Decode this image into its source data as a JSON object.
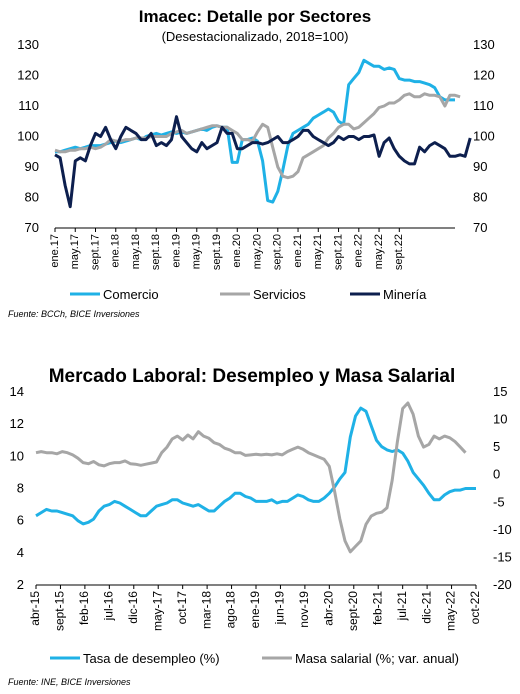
{
  "chart_data": [
    {
      "type": "line",
      "title": "Imacec: Detalle por Sectores",
      "subtitle": "(Desestacionalizado, 2018=100)",
      "source": "Fuente: BCCh, BICE Inversiones",
      "ylim": [
        70,
        130
      ],
      "yticks": [
        70,
        80,
        90,
        100,
        110,
        120,
        130
      ],
      "y2ticks": [
        70,
        80,
        90,
        100,
        110,
        120,
        130
      ],
      "xticks": [
        "ene.17",
        "may.17",
        "sept.17",
        "ene.18",
        "may.18",
        "sept.18",
        "ene.19",
        "may.19",
        "sept.19",
        "ene.20",
        "may.20",
        "sept.20",
        "ene.21",
        "may.21",
        "sept.21",
        "ene.22",
        "may.22",
        "sept.22"
      ],
      "grid": false,
      "legend_position": "bottom",
      "series": [
        {
          "name": "Comercio",
          "color": "#1fb1e6",
          "values": [
            95,
            95,
            95.5,
            96,
            96.5,
            96,
            96.5,
            97,
            97,
            97,
            97.5,
            98,
            98.5,
            98,
            98.5,
            99,
            99.5,
            99,
            100,
            100.5,
            101,
            100.5,
            101,
            101.5,
            101,
            101.5,
            101,
            101.5,
            102,
            102.5,
            102,
            103,
            103.5,
            103,
            103,
            91.5,
            91.5,
            99,
            99,
            99.5,
            98.5,
            92,
            79,
            78.5,
            82,
            89,
            97,
            101,
            102,
            103,
            104,
            106,
            107,
            108,
            109,
            108,
            105,
            104,
            117,
            119,
            121,
            125,
            124,
            123,
            123,
            122,
            122.5,
            122,
            119,
            118.5,
            118.5,
            118,
            118,
            117.5,
            117,
            116,
            113,
            112,
            112,
            112
          ]
        },
        {
          "name": "Servicios",
          "color": "#a6a6a6",
          "values": [
            95.5,
            95,
            95,
            95.5,
            95.5,
            96,
            96,
            96.5,
            96,
            96.5,
            97.5,
            99,
            98.5,
            98.5,
            99,
            99,
            99.5,
            99.5,
            99.5,
            100,
            100,
            100,
            100,
            101,
            101.5,
            102,
            101,
            101.5,
            102,
            102.5,
            103,
            103.5,
            103.5,
            103,
            103,
            102,
            101,
            99,
            99,
            98.5,
            101.5,
            104,
            103,
            96.5,
            90,
            87,
            86.5,
            87,
            88.5,
            93,
            94,
            95,
            96,
            97,
            99.5,
            101,
            103,
            104,
            104,
            102.5,
            103,
            104.5,
            106,
            107.5,
            109.5,
            110,
            111,
            111,
            112,
            113.5,
            114,
            113,
            113,
            114,
            113.5,
            113.5,
            113,
            110,
            113.5,
            113.5,
            113
          ]
        },
        {
          "name": "Minería",
          "color": "#0d1f4e",
          "values": [
            94,
            93,
            84,
            77,
            92,
            93,
            92,
            97,
            101,
            100,
            103,
            99,
            96,
            100,
            103,
            102,
            101,
            99,
            99,
            101,
            97,
            98,
            97,
            99,
            106.5,
            100,
            98,
            96,
            95,
            98,
            96,
            97,
            98,
            103,
            101,
            101,
            96,
            96,
            97,
            98,
            98,
            97.5,
            98,
            99,
            100,
            98,
            98,
            99,
            100,
            102,
            102,
            100,
            99,
            98,
            97,
            98,
            100,
            99,
            100,
            100,
            99,
            100,
            100,
            100.5,
            93.5,
            98,
            99.5,
            96,
            93.5,
            92,
            91,
            91,
            96.5,
            95,
            97,
            98,
            97,
            96,
            93.5,
            93.5,
            94,
            93.5,
            99.5
          ]
        }
      ]
    },
    {
      "type": "line",
      "title": "Mercado Laboral: Desempleo y Masa Salarial",
      "source": "Fuente: INE, BICE Inversiones",
      "ylim": [
        2,
        14
      ],
      "y2lim": [
        -20,
        15
      ],
      "yticks": [
        2,
        4,
        6,
        8,
        10,
        12,
        14
      ],
      "y2ticks": [
        -20,
        -15,
        -10,
        -5,
        0,
        5,
        10,
        15
      ],
      "xticks": [
        "abr-15",
        "sept-15",
        "feb-16",
        "jul-16",
        "dic-16",
        "may-17",
        "oct-17",
        "mar-18",
        "ago-18",
        "ene-19",
        "jun-19",
        "nov-19",
        "abr-20",
        "sept-20",
        "feb-21",
        "jul-21",
        "dic-21",
        "may-22",
        "oct-22"
      ],
      "grid": false,
      "legend_position": "bottom",
      "series": [
        {
          "name": "Tasa de desempleo (%)",
          "axis": "left",
          "color": "#1fb1e6",
          "values": [
            6.3,
            6.5,
            6.7,
            6.6,
            6.6,
            6.5,
            6.4,
            6.3,
            6.0,
            5.8,
            5.9,
            6.1,
            6.6,
            6.9,
            7.0,
            7.2,
            7.1,
            6.9,
            6.7,
            6.5,
            6.3,
            6.3,
            6.6,
            6.9,
            7.0,
            7.1,
            7.3,
            7.3,
            7.1,
            7.0,
            6.9,
            7.0,
            6.8,
            6.6,
            6.6,
            6.9,
            7.2,
            7.4,
            7.7,
            7.7,
            7.5,
            7.4,
            7.2,
            7.2,
            7.2,
            7.3,
            7.1,
            7.2,
            7.2,
            7.4,
            7.6,
            7.5,
            7.3,
            7.2,
            7.2,
            7.4,
            7.7,
            8.1,
            8.6,
            9.0,
            11.2,
            12.5,
            13.0,
            12.8,
            11.9,
            11.0,
            10.6,
            10.4,
            10.3,
            10.4,
            10.2,
            9.7,
            9.0,
            8.6,
            8.2,
            7.7,
            7.3,
            7.3,
            7.6,
            7.8,
            7.9,
            7.9,
            8.0,
            8.0,
            8.0
          ]
        },
        {
          "name": "Masa salarial (%; var. anual)",
          "axis": "right",
          "color": "#a6a6a6",
          "values": [
            4.0,
            4.2,
            4.0,
            4.0,
            3.8,
            4.2,
            4.0,
            3.6,
            3.0,
            2.2,
            2.0,
            2.4,
            1.8,
            1.6,
            2.0,
            2.2,
            2.2,
            2.5,
            2.0,
            1.9,
            1.7,
            1.9,
            2.1,
            2.3,
            4.0,
            5.0,
            6.5,
            7.0,
            6.3,
            7.2,
            6.5,
            7.8,
            7.0,
            6.6,
            5.8,
            5.5,
            4.8,
            4.5,
            4.0,
            4.0,
            3.5,
            3.6,
            3.7,
            3.6,
            3.7,
            3.6,
            3.8,
            3.6,
            4.2,
            4.6,
            5.0,
            4.6,
            4.0,
            3.6,
            3.2,
            2.8,
            1.5,
            -3.0,
            -8.0,
            -12.0,
            -14.0,
            -13.0,
            -12.0,
            -9.0,
            -7.5,
            -7.0,
            -6.8,
            -6.0,
            -1.0,
            6.0,
            12.0,
            13.0,
            11.0,
            7.0,
            5.0,
            5.5,
            7.0,
            6.5,
            7.0,
            6.7,
            6.0,
            5.0,
            4.0
          ]
        }
      ]
    }
  ]
}
